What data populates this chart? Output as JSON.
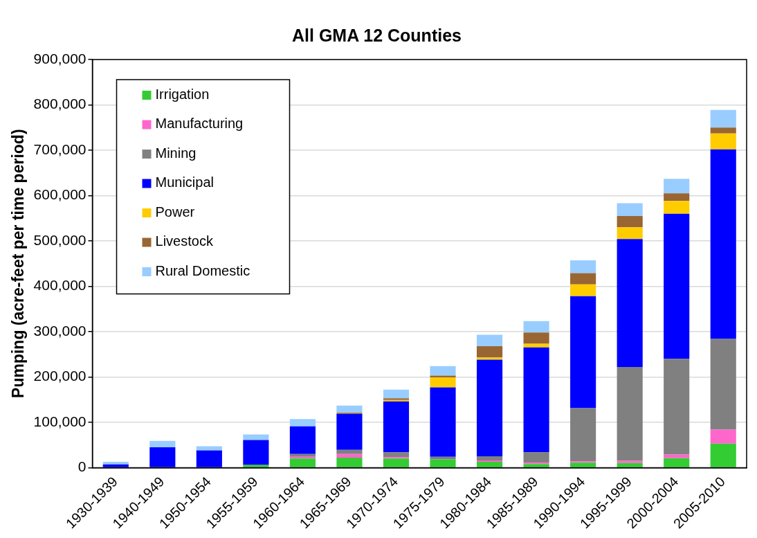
{
  "chart_data": {
    "type": "bar",
    "title": "All GMA 12 Counties",
    "ylabel": "Pumping (acre-feet per time period)",
    "categories": [
      "1930-1939",
      "1940-1949",
      "1950-1954",
      "1955-1959",
      "1960-1964",
      "1965-1969",
      "1970-1974",
      "1975-1979",
      "1980-1984",
      "1985-1989",
      "1990-1994",
      "1995-1999",
      "2000-2004",
      "2005-2010"
    ],
    "stacked": true,
    "grid": "y",
    "legend": "top left",
    "ylim": [
      0,
      900000
    ],
    "yticks": [
      {
        "value": 0,
        "label": "0"
      },
      {
        "value": 100000,
        "label": "100,000"
      },
      {
        "value": 200000,
        "label": "200,000"
      },
      {
        "value": 300000,
        "label": "300,000"
      },
      {
        "value": 400000,
        "label": "400,000"
      },
      {
        "value": 500000,
        "label": "500,000"
      },
      {
        "value": 600000,
        "label": "600,000"
      },
      {
        "value": 700000,
        "label": "700,000"
      },
      {
        "value": 800000,
        "label": "800,000"
      },
      {
        "value": 900000,
        "label": "900,000"
      }
    ],
    "series": [
      {
        "name": "Irrigation",
        "color": "#33cc33",
        "values": [
          0,
          0,
          0,
          6000,
          20000,
          22000,
          20000,
          18000,
          13000,
          8000,
          11000,
          10000,
          21000,
          53000
        ]
      },
      {
        "name": "Manufacturing",
        "color": "#ff66cc",
        "values": [
          0,
          0,
          0,
          0,
          4000,
          8000,
          3000,
          null,
          3000,
          3000,
          3000,
          5000,
          8000,
          31000
        ]
      },
      {
        "name": "Mining",
        "color": "#808080",
        "values": [
          0,
          0,
          0,
          0,
          6000,
          9000,
          11000,
          6000,
          9000,
          23000,
          117000,
          207000,
          211000,
          200000
        ]
      },
      {
        "name": "Municipal",
        "color": "#0000ff",
        "values": [
          7000,
          45000,
          38000,
          55000,
          61000,
          79000,
          112000,
          153000,
          213000,
          231000,
          247000,
          282000,
          320000,
          418000
        ]
      },
      {
        "name": "Power",
        "color": "#ffcc00",
        "values": [
          0,
          0,
          0,
          0,
          0,
          0,
          3000,
          22000,
          5000,
          8000,
          26000,
          26000,
          28000,
          35000
        ]
      },
      {
        "name": "Livestock",
        "color": "#996633",
        "values": [
          0,
          0,
          0,
          0,
          0,
          3000,
          4000,
          4000,
          25000,
          25000,
          25000,
          25000,
          17000,
          13000
        ]
      },
      {
        "name": "Rural Domestic",
        "color": "#99ccff",
        "values": [
          6000,
          14000,
          9000,
          12000,
          16000,
          16000,
          19000,
          21000,
          25000,
          25000,
          28000,
          28000,
          32000,
          39000
        ]
      }
    ]
  }
}
